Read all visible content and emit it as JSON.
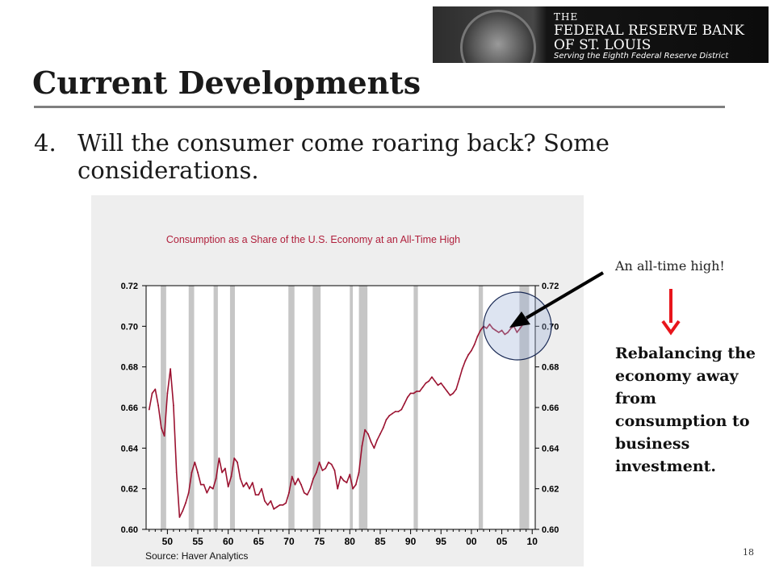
{
  "header": {
    "logo": {
      "line1": "THE",
      "line2": "FEDERAL RESERVE BANK",
      "line3": "OF ST. LOUIS",
      "line4": "Serving the Eighth Federal Reserve District"
    },
    "title": "Current Developments"
  },
  "bullet": {
    "number": "4.",
    "text": "Will the consumer come roaring back? Some considerations."
  },
  "annotation": {
    "high_label": "An all-time high!",
    "rebalance_text": "Rebalancing the economy away from consumption to business investment.",
    "arrow_color": "#e8151b"
  },
  "slide_number": "18",
  "colors": {
    "series": "#9b1230",
    "recession": "#c6c6c6",
    "chart_title": "#b0203c",
    "panel": "#eeeeee"
  },
  "chart_data": {
    "type": "line",
    "title": "Consumption as a Share of the U.S. Economy at an All-Time High",
    "source": "Source: Haver Analytics",
    "xlim": [
      1946.5,
      2010.5
    ],
    "ylim": [
      0.6,
      0.72
    ],
    "y_ticks": [
      "0.72",
      "0.70",
      "0.68",
      "0.66",
      "0.64",
      "0.62",
      "0.60"
    ],
    "x_ticks": [
      "50",
      "55",
      "60",
      "65",
      "70",
      "75",
      "80",
      "85",
      "90",
      "95",
      "00",
      "05",
      "10"
    ],
    "x_tick_years": [
      1950,
      1955,
      1960,
      1965,
      1970,
      1975,
      1980,
      1985,
      1990,
      1995,
      2000,
      2005,
      2010
    ],
    "y_axis_both_sides": true,
    "grid": false,
    "recessions": [
      [
        1948.9,
        1949.8
      ],
      [
        1953.5,
        1954.4
      ],
      [
        1957.6,
        1958.3
      ],
      [
        1960.3,
        1961.1
      ],
      [
        1969.9,
        1970.9
      ],
      [
        1973.9,
        1975.2
      ],
      [
        1980.0,
        1980.5
      ],
      [
        1981.5,
        1982.9
      ],
      [
        1990.5,
        1991.2
      ],
      [
        2001.2,
        2001.9
      ],
      [
        2007.9,
        2009.5
      ]
    ],
    "series": [
      {
        "x": [
          1947.0,
          1947.5,
          1948.0,
          1948.5,
          1949.0,
          1949.5,
          1950.0,
          1950.5,
          1951.0,
          1951.5,
          1952.0,
          1952.5,
          1953.0,
          1953.5,
          1954.0,
          1954.5,
          1955.0,
          1955.5,
          1956.0,
          1956.5,
          1957.0,
          1957.5,
          1958.0,
          1958.5,
          1959.0,
          1959.5,
          1960.0,
          1960.5,
          1961.0,
          1961.5,
          1962.0,
          1962.5,
          1963.0,
          1963.5,
          1964.0,
          1964.5,
          1965.0,
          1965.5,
          1966.0,
          1966.5,
          1967.0,
          1967.5,
          1968.0,
          1968.5,
          1969.0,
          1969.5,
          1970.0,
          1970.5,
          1971.0,
          1971.5,
          1972.0,
          1972.5,
          1973.0,
          1973.5,
          1974.0,
          1974.5,
          1975.0,
          1975.5,
          1976.0,
          1976.5,
          1977.0,
          1977.5,
          1978.0,
          1978.5,
          1979.0,
          1979.5,
          1980.0,
          1980.5,
          1981.0,
          1981.5,
          1982.0,
          1982.5,
          1983.0,
          1983.5,
          1984.0,
          1984.5,
          1985.0,
          1985.5,
          1986.0,
          1986.5,
          1987.0,
          1987.5,
          1988.0,
          1988.5,
          1989.0,
          1989.5,
          1990.0,
          1990.5,
          1991.0,
          1991.5,
          1992.0,
          1992.5,
          1993.0,
          1993.5,
          1994.0,
          1994.5,
          1995.0,
          1995.5,
          1996.0,
          1996.5,
          1997.0,
          1997.5,
          1998.0,
          1998.5,
          1999.0,
          1999.5,
          2000.0,
          2000.5,
          2001.0,
          2001.5,
          2002.0,
          2002.5,
          2003.0,
          2003.5,
          2004.0,
          2004.5,
          2005.0,
          2005.5,
          2006.0,
          2006.5,
          2007.0,
          2007.5,
          2008.0,
          2008.5,
          2009.0,
          2009.5
        ],
        "y": [
          0.659,
          0.667,
          0.669,
          0.661,
          0.65,
          0.646,
          0.667,
          0.679,
          0.661,
          0.628,
          0.606,
          0.609,
          0.613,
          0.618,
          0.628,
          0.633,
          0.628,
          0.622,
          0.622,
          0.618,
          0.621,
          0.62,
          0.625,
          0.635,
          0.628,
          0.63,
          0.621,
          0.626,
          0.635,
          0.633,
          0.625,
          0.621,
          0.623,
          0.62,
          0.623,
          0.617,
          0.617,
          0.62,
          0.614,
          0.612,
          0.614,
          0.61,
          0.611,
          0.612,
          0.612,
          0.613,
          0.618,
          0.626,
          0.622,
          0.625,
          0.622,
          0.618,
          0.617,
          0.62,
          0.625,
          0.628,
          0.633,
          0.629,
          0.63,
          0.633,
          0.632,
          0.629,
          0.62,
          0.626,
          0.624,
          0.623,
          0.627,
          0.62,
          0.622,
          0.628,
          0.641,
          0.649,
          0.647,
          0.643,
          0.64,
          0.644,
          0.647,
          0.65,
          0.654,
          0.656,
          0.657,
          0.658,
          0.658,
          0.659,
          0.662,
          0.665,
          0.667,
          0.667,
          0.668,
          0.668,
          0.67,
          0.672,
          0.673,
          0.675,
          0.673,
          0.671,
          0.672,
          0.67,
          0.668,
          0.666,
          0.667,
          0.669,
          0.674,
          0.679,
          0.683,
          0.686,
          0.688,
          0.691,
          0.695,
          0.698,
          0.7,
          0.699,
          0.701,
          0.699,
          0.698,
          0.697,
          0.698,
          0.696,
          0.697,
          0.699,
          0.7,
          0.697,
          0.699,
          0.701,
          0.703,
          0.705
        ]
      }
    ]
  }
}
